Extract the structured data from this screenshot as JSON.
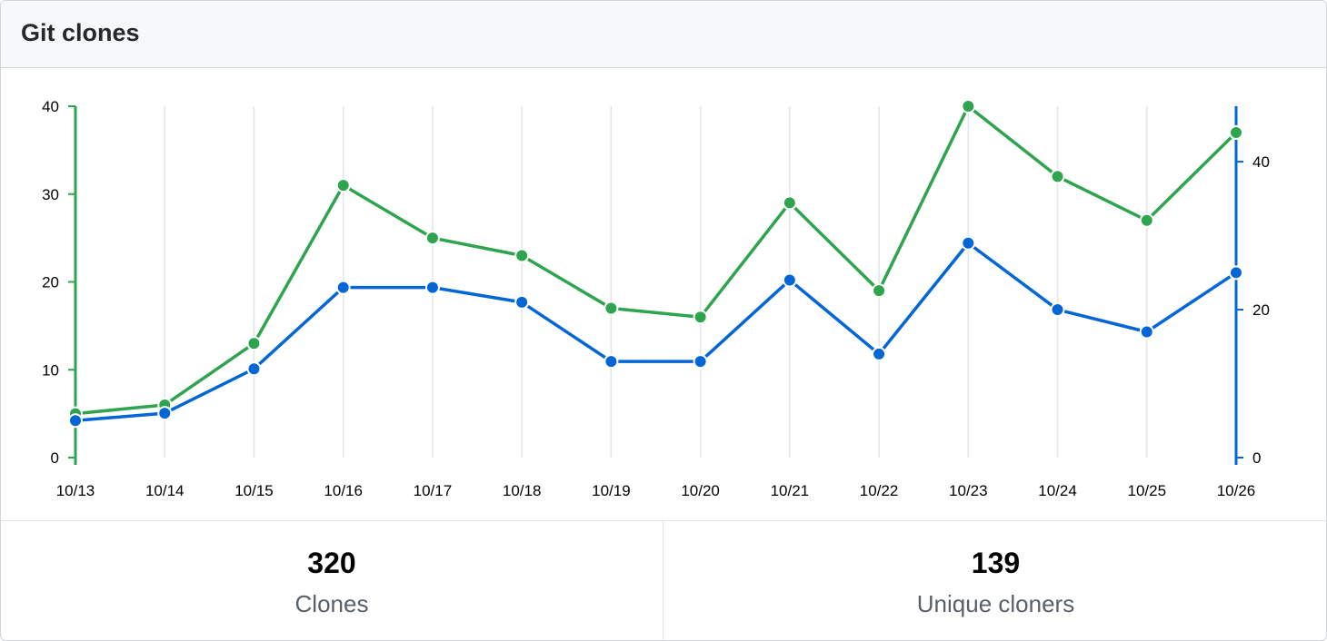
{
  "header": {
    "title": "Git clones"
  },
  "stats": {
    "clones": {
      "value": "320",
      "label": "Clones"
    },
    "unique": {
      "value": "139",
      "label": "Unique cloners"
    }
  },
  "colors": {
    "clones": "#2ea44f",
    "unique": "#0366d6",
    "grid": "#e1e4e8"
  },
  "chart_data": {
    "type": "line",
    "x": [
      "10/13",
      "10/14",
      "10/15",
      "10/16",
      "10/17",
      "10/18",
      "10/19",
      "10/20",
      "10/21",
      "10/22",
      "10/23",
      "10/24",
      "10/25",
      "10/26"
    ],
    "series": [
      {
        "name": "Clones",
        "axis": "left",
        "values": [
          5,
          6,
          13,
          31,
          25,
          23,
          17,
          16,
          29,
          19,
          40,
          32,
          27,
          37
        ]
      },
      {
        "name": "Unique cloners",
        "axis": "right",
        "values": [
          5,
          6,
          12,
          23,
          23,
          21,
          13,
          13,
          24,
          14,
          29,
          20,
          17,
          25
        ]
      }
    ],
    "y_left": {
      "ticks": [
        "0",
        "10",
        "20",
        "30",
        "40"
      ],
      "range": [
        0,
        40
      ]
    },
    "y_right": {
      "ticks": [
        "0",
        "20",
        "40"
      ],
      "range": [
        0,
        47.5
      ]
    },
    "grid": "vertical"
  }
}
